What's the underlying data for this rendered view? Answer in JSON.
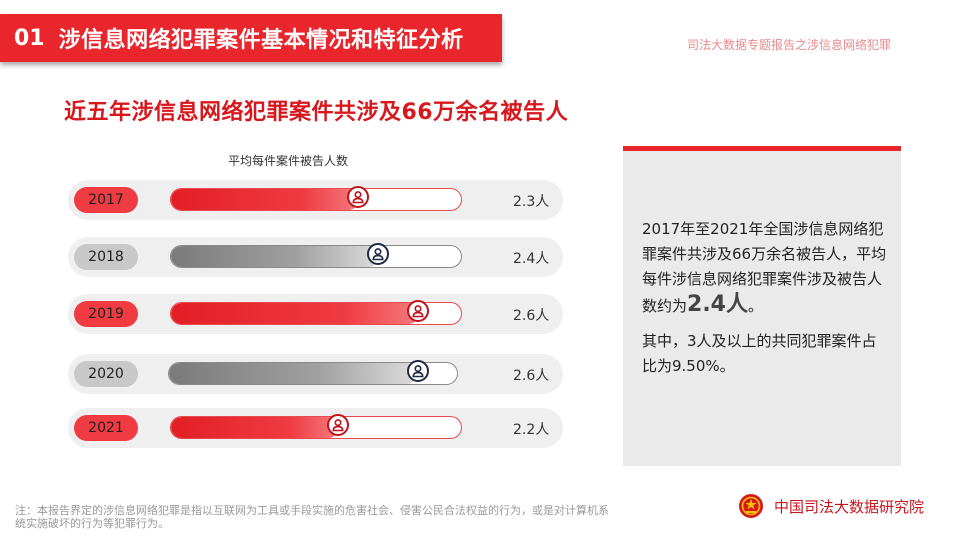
{
  "section": {
    "number": "01",
    "title": "涉信息网络犯罪案件基本情况和特征分析"
  },
  "header_right": "司法大数据专题报告之涉信息网络犯罪",
  "headline": "近五年涉信息网络犯罪案件共涉及66万余名被告人",
  "chart_caption": "平均每件案件被告人数",
  "colors": {
    "accent": "#e8262c",
    "gray": "#a6a6a6",
    "dark_icon": "#1f2a44"
  },
  "rows": [
    {
      "year": "2017",
      "value": 2.3,
      "value_label": "2.3人",
      "style": "red"
    },
    {
      "year": "2018",
      "value": 2.4,
      "value_label": "2.4人",
      "style": "gray"
    },
    {
      "year": "2019",
      "value": 2.6,
      "value_label": "2.6人",
      "style": "red"
    },
    {
      "year": "2020",
      "value": 2.6,
      "value_label": "2.6人",
      "style": "gray"
    },
    {
      "year": "2021",
      "value": 2.2,
      "value_label": "2.2人",
      "style": "red"
    }
  ],
  "info": {
    "para1_text": "2017年至2021年全国涉信息网络犯罪案件共涉及66万余名被告人，平均每件涉信息网络犯罪案件涉及被告人数约为",
    "para1_highlight": "2.4人",
    "para1_end": "。",
    "para2": "其中，3人及以上的共同犯罪案件占比为9.50%。"
  },
  "footnote": "注：本报告界定的涉信息网络犯罪是指以互联网为工具或手段实施的危害社会、侵害公民合法权益的行为，或是对计算机系统实施破坏的行为等犯罪行为。",
  "org_name": "中国司法大数据研究院"
}
